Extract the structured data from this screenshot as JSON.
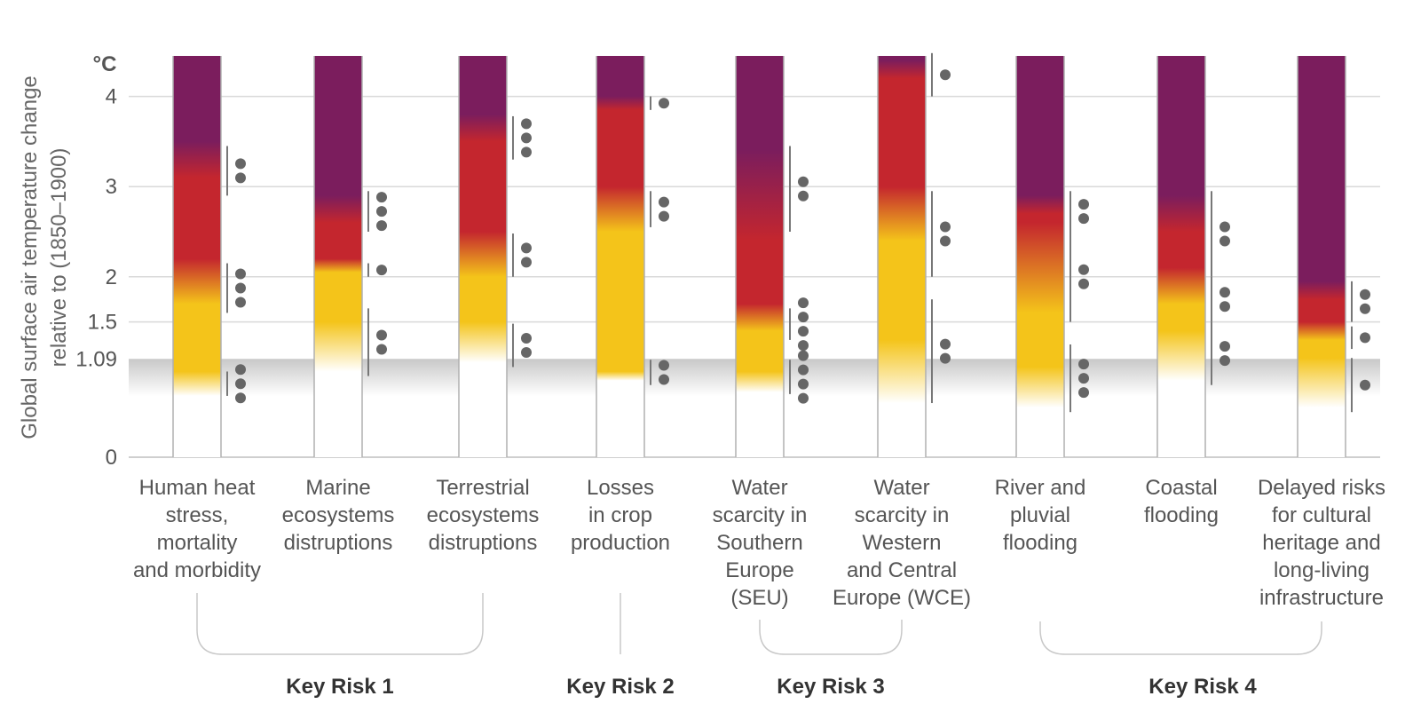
{
  "chart_data": {
    "type": "bar",
    "ylabel": [
      "Global surface air temperature change",
      "relative to (1850–1900)"
    ],
    "y_unit": "°C",
    "yticks": [
      "0",
      "1.09",
      "1.5",
      "2",
      "3",
      "4"
    ],
    "ytick_values": [
      0,
      1.09,
      1.5,
      2,
      3,
      4
    ],
    "ylim": [
      0,
      4.5
    ],
    "current_warming": 1.09,
    "colors": {
      "white": "#ffffff",
      "yellow": "#f4c41a",
      "orange": "#eb8a25",
      "red": "#c4262e",
      "purple": "#7b1d5d",
      "grey_band": "#c8c8c8",
      "dot": "#666666",
      "grid": "#d9d9d9"
    },
    "categories": [
      {
        "label": [
          "Human heat",
          "stress,",
          "mortality",
          "and morbidity"
        ],
        "transitions": [
          {
            "from": "white",
            "to": "yellow",
            "start": 0.68,
            "end": 0.95
          },
          {
            "from": "yellow",
            "to": "red",
            "start": 1.7,
            "end": 2.2
          },
          {
            "from": "red",
            "to": "purple",
            "start": 3.1,
            "end": 3.5
          }
        ],
        "confidence": [
          {
            "start": 0.68,
            "end": 0.95,
            "dots": 3
          },
          {
            "start": 1.6,
            "end": 2.15,
            "dots": 3
          },
          {
            "start": 2.9,
            "end": 3.45,
            "dots": 2
          }
        ]
      },
      {
        "label": [
          "Marine",
          "ecosystems",
          "distruptions"
        ],
        "transitions": [
          {
            "from": "white",
            "to": "yellow",
            "start": 0.95,
            "end": 1.5
          },
          {
            "from": "yellow",
            "to": "red",
            "start": 2.05,
            "end": 2.2
          },
          {
            "from": "red",
            "to": "purple",
            "start": 2.6,
            "end": 2.9
          }
        ],
        "confidence": [
          {
            "start": 0.9,
            "end": 1.65,
            "dots": 2
          },
          {
            "start": 2.0,
            "end": 2.15,
            "dots": 1
          },
          {
            "start": 2.5,
            "end": 2.95,
            "dots": 3
          }
        ]
      },
      {
        "label": [
          "Terrestrial",
          "ecosystems",
          "distruptions"
        ],
        "transitions": [
          {
            "from": "white",
            "to": "yellow",
            "start": 1.05,
            "end": 1.5
          },
          {
            "from": "yellow",
            "to": "red",
            "start": 2.0,
            "end": 2.5
          },
          {
            "from": "red",
            "to": "purple",
            "start": 3.5,
            "end": 3.8
          }
        ],
        "confidence": [
          {
            "start": 1.0,
            "end": 1.48,
            "dots": 2
          },
          {
            "start": 2.0,
            "end": 2.48,
            "dots": 2
          },
          {
            "start": 3.3,
            "end": 3.78,
            "dots": 3
          }
        ]
      },
      {
        "label": [
          "Losses",
          "in crop",
          "production"
        ],
        "transitions": [
          {
            "from": "white",
            "to": "yellow",
            "start": 0.85,
            "end": 0.95
          },
          {
            "from": "yellow",
            "to": "red",
            "start": 2.5,
            "end": 3.0
          },
          {
            "from": "red",
            "to": "purple",
            "start": 3.85,
            "end": 4.0
          }
        ],
        "confidence": [
          {
            "start": 0.8,
            "end": 1.08,
            "dots": 2
          },
          {
            "start": 2.55,
            "end": 2.95,
            "dots": 2
          },
          {
            "start": 3.85,
            "end": 4.0,
            "dots": 1
          }
        ]
      },
      {
        "label": [
          "Water",
          "scarcity in",
          "Southern",
          "Europe",
          "(SEU)"
        ],
        "transitions": [
          {
            "from": "white",
            "to": "yellow",
            "start": 0.72,
            "end": 0.95
          },
          {
            "from": "yellow",
            "to": "red",
            "start": 1.4,
            "end": 1.7
          },
          {
            "from": "red",
            "to": "purple",
            "start": 2.4,
            "end": 3.4
          }
        ],
        "confidence": [
          {
            "start": 0.7,
            "end": 1.08,
            "dots": 4
          },
          {
            "start": 1.3,
            "end": 1.65,
            "dots": 4
          },
          {
            "start": 2.5,
            "end": 3.45,
            "dots": 2
          }
        ]
      },
      {
        "label": [
          "Water",
          "scarcity in",
          "Western",
          "and Central",
          "Europe (WCE)"
        ],
        "transitions": [
          {
            "from": "white",
            "to": "yellow",
            "start": 0.6,
            "end": 1.3
          },
          {
            "from": "yellow",
            "to": "red",
            "start": 2.4,
            "end": 3.0
          },
          {
            "from": "red",
            "to": "purple",
            "start": 4.2,
            "end": 4.4
          }
        ],
        "confidence": [
          {
            "start": 0.6,
            "end": 1.75,
            "dots": 2
          },
          {
            "start": 2.0,
            "end": 2.95,
            "dots": 2
          },
          {
            "start": 4.0,
            "end": 4.48,
            "dots": 1
          }
        ]
      },
      {
        "label": [
          "River and",
          "pluvial",
          "flooding"
        ],
        "transitions": [
          {
            "from": "white",
            "to": "yellow",
            "start": 0.55,
            "end": 1.0
          },
          {
            "from": "yellow",
            "to": "red",
            "start": 1.6,
            "end": 2.6
          },
          {
            "from": "red",
            "to": "purple",
            "start": 2.7,
            "end": 2.9
          }
        ],
        "confidence": [
          {
            "start": 0.5,
            "end": 1.25,
            "dots": 3
          },
          {
            "start": 1.5,
            "end": 2.5,
            "dots": 2
          },
          {
            "start": 2.5,
            "end": 2.95,
            "dots": 2
          }
        ]
      },
      {
        "label": [
          "Coastal",
          "flooding"
        ],
        "transitions": [
          {
            "from": "white",
            "to": "yellow",
            "start": 0.85,
            "end": 1.4
          },
          {
            "from": "yellow",
            "to": "red",
            "start": 1.7,
            "end": 2.1
          },
          {
            "from": "red",
            "to": "purple",
            "start": 2.5,
            "end": 2.9
          }
        ],
        "confidence": [
          {
            "start": 0.8,
            "end": 1.5,
            "dots": 2
          },
          {
            "start": 1.5,
            "end": 2.0,
            "dots": 2
          },
          {
            "start": 2.0,
            "end": 2.95,
            "dots": 2
          }
        ]
      },
      {
        "label": [
          "Delayed risks",
          "for cultural",
          "heritage and",
          "long-living",
          "infrastructure"
        ],
        "transitions": [
          {
            "from": "white",
            "to": "yellow",
            "start": 0.55,
            "end": 1.1
          },
          {
            "from": "yellow",
            "to": "red",
            "start": 1.3,
            "end": 1.5
          },
          {
            "from": "red",
            "to": "purple",
            "start": 1.75,
            "end": 1.95
          }
        ],
        "confidence": [
          {
            "start": 0.5,
            "end": 1.1,
            "dots": 1
          },
          {
            "start": 1.2,
            "end": 1.45,
            "dots": 1
          },
          {
            "start": 1.5,
            "end": 1.95,
            "dots": 2
          }
        ]
      }
    ],
    "groups": [
      {
        "label": "Key Risk 1",
        "members": [
          0,
          1,
          2
        ]
      },
      {
        "label": "Key Risk 2",
        "members": [
          3
        ]
      },
      {
        "label": "Key Risk 3",
        "members": [
          4,
          5
        ]
      },
      {
        "label": "Key Risk 4",
        "members": [
          6,
          7,
          8
        ]
      }
    ]
  }
}
